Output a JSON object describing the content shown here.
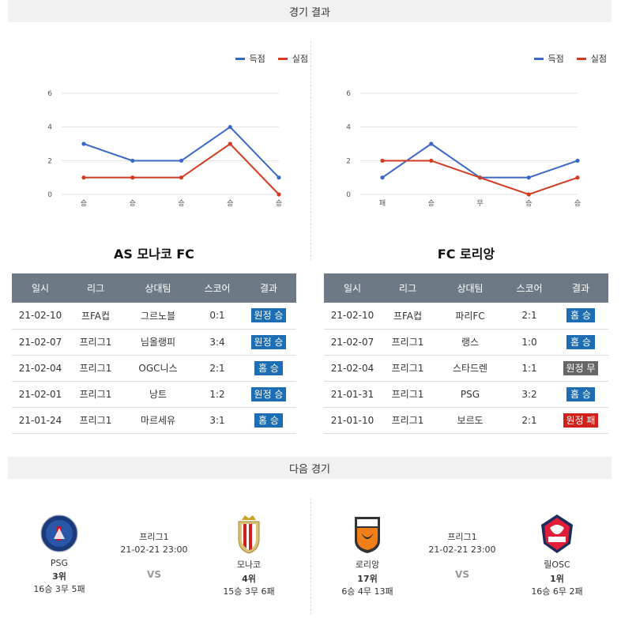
{
  "section_results": "경기 결과",
  "section_next": "다음 경기",
  "colors": {
    "scored": "#3a68c6",
    "conceded": "#d23b1f",
    "home_badge": "#1c6db4",
    "away_badge": "#1c6db4",
    "draw_badge": "#666666",
    "loss_badge": "#d0211c",
    "header_bg": "#6d7a86"
  },
  "legend": {
    "scored": "득점",
    "conceded": "실점"
  },
  "chart_data": [
    {
      "type": "line",
      "categories": [
        "승",
        "승",
        "승",
        "승",
        "승"
      ],
      "ylim": [
        0,
        6
      ],
      "yticks": [
        0,
        2,
        4,
        6
      ],
      "series": [
        {
          "name": "득점",
          "values": [
            3,
            2,
            2,
            4,
            1
          ]
        },
        {
          "name": "실점",
          "values": [
            1,
            1,
            1,
            3,
            0
          ]
        }
      ],
      "legend_position": "top-right",
      "grid": true
    },
    {
      "type": "line",
      "categories": [
        "패",
        "승",
        "무",
        "승",
        "승"
      ],
      "ylim": [
        0,
        6
      ],
      "yticks": [
        0,
        2,
        4,
        6
      ],
      "series": [
        {
          "name": "득점",
          "values": [
            1,
            3,
            1,
            1,
            2
          ]
        },
        {
          "name": "실점",
          "values": [
            2,
            2,
            1,
            0,
            1
          ]
        }
      ],
      "legend_position": "top-right",
      "grid": true
    }
  ],
  "left_team": {
    "title": "AS 모나코 FC",
    "headers": [
      "일시",
      "리그",
      "상대팀",
      "스코어",
      "결과"
    ],
    "rows": [
      {
        "date": "21-02-10",
        "league": "프FA컵",
        "opponent": "그르노블",
        "score": "0:1",
        "result": "원정 승",
        "kind": "away"
      },
      {
        "date": "21-02-07",
        "league": "프리그1",
        "opponent": "님올랭피",
        "score": "3:4",
        "result": "원정 승",
        "kind": "away"
      },
      {
        "date": "21-02-04",
        "league": "프리그1",
        "opponent": "OGC니스",
        "score": "2:1",
        "result": "홈 승",
        "kind": "home"
      },
      {
        "date": "21-02-01",
        "league": "프리그1",
        "opponent": "낭트",
        "score": "1:2",
        "result": "원정 승",
        "kind": "away"
      },
      {
        "date": "21-01-24",
        "league": "프리그1",
        "opponent": "마르세유",
        "score": "3:1",
        "result": "홈 승",
        "kind": "home"
      }
    ]
  },
  "right_team": {
    "title": "FC 로리앙",
    "headers": [
      "일시",
      "리그",
      "상대팀",
      "스코어",
      "결과"
    ],
    "rows": [
      {
        "date": "21-02-10",
        "league": "프FA컵",
        "opponent": "파리FC",
        "score": "2:1",
        "result": "홈 승",
        "kind": "home"
      },
      {
        "date": "21-02-07",
        "league": "프리그1",
        "opponent": "랭스",
        "score": "1:0",
        "result": "홈 승",
        "kind": "home"
      },
      {
        "date": "21-02-04",
        "league": "프리그1",
        "opponent": "스타드렌",
        "score": "1:1",
        "result": "원정 무",
        "kind": "draw"
      },
      {
        "date": "21-01-31",
        "league": "프리그1",
        "opponent": "PSG",
        "score": "3:2",
        "result": "홈 승",
        "kind": "home"
      },
      {
        "date": "21-01-10",
        "league": "프리그1",
        "opponent": "보르도",
        "score": "2:1",
        "result": "원정 패",
        "kind": "loss"
      }
    ]
  },
  "next_matches": [
    {
      "home": {
        "name": "PSG",
        "rank": "3위",
        "record": "16승 3무 5패",
        "logo_text": "PARIS"
      },
      "away": {
        "name": "모나코",
        "rank": "4위",
        "record": "15승 3무 6패",
        "logo_text": "MONACO"
      },
      "league": "프리그1",
      "datetime": "21-02-21 23:00",
      "vs": "VS"
    },
    {
      "home": {
        "name": "로리앙",
        "rank": "17위",
        "record": "6승 4무 13패",
        "logo_text": "FC LORIENT"
      },
      "away": {
        "name": "릴OSC",
        "rank": "1위",
        "record": "16승 6무 2패",
        "logo_text": "LOSC"
      },
      "league": "프리그1",
      "datetime": "21-02-21 23:00",
      "vs": "VS"
    }
  ]
}
